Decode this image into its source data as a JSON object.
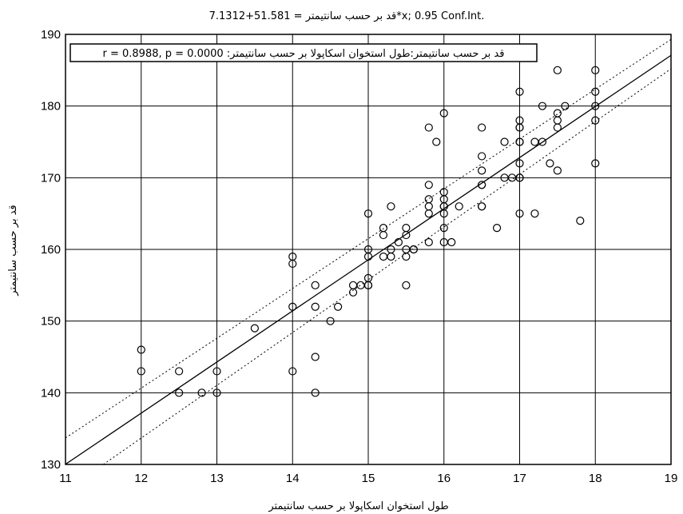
{
  "chart_data": {
    "type": "scatter",
    "title": "قد بر حسب سانتیمتر = 51.581+7.1312*x; 0.95 Conf.Int.",
    "xlabel": "طول استخوان اسکاپولا بر حسب سانتیمتر",
    "ylabel": "قد بر حسب سانتیمتر",
    "legend_text": "قد بر حسب سانتیمتر:طول استخوان اسکاپولا بر حسب سانتیمتر:   r = 0.8988, p = 0.0000",
    "legend_position": "top-left",
    "grid": true,
    "xlim": [
      11,
      19
    ],
    "ylim": [
      130,
      190
    ],
    "x_ticks": [
      11,
      12,
      13,
      14,
      15,
      16,
      17,
      18,
      19
    ],
    "y_ticks": [
      130,
      140,
      150,
      160,
      170,
      180,
      190
    ],
    "regression": {
      "intercept": 51.581,
      "slope": 7.1312,
      "conf_int": 0.95
    },
    "conf_band": {
      "upper": [
        [
          11,
          133.7
        ],
        [
          19,
          189.3
        ]
      ],
      "lower": [
        [
          11.5,
          130
        ],
        [
          19,
          185.2
        ]
      ]
    },
    "points": [
      [
        12,
        146
      ],
      [
        12,
        143
      ],
      [
        12.5,
        143
      ],
      [
        12.5,
        140
      ],
      [
        12.8,
        140
      ],
      [
        13,
        143
      ],
      [
        13,
        140
      ],
      [
        13.5,
        149
      ],
      [
        14,
        159
      ],
      [
        14,
        158
      ],
      [
        14,
        152
      ],
      [
        14,
        143
      ],
      [
        14.3,
        155
      ],
      [
        14.3,
        152
      ],
      [
        14.3,
        145
      ],
      [
        14.3,
        140
      ],
      [
        14.5,
        150
      ],
      [
        14.6,
        152
      ],
      [
        14.8,
        155
      ],
      [
        14.8,
        154
      ],
      [
        14.9,
        155
      ],
      [
        15,
        165
      ],
      [
        15,
        160
      ],
      [
        15,
        159
      ],
      [
        15,
        156
      ],
      [
        15,
        155
      ],
      [
        15,
        155
      ],
      [
        15.2,
        163
      ],
      [
        15.2,
        162
      ],
      [
        15.2,
        159
      ],
      [
        15.3,
        166
      ],
      [
        15.3,
        160
      ],
      [
        15.3,
        159
      ],
      [
        15.4,
        161
      ],
      [
        15.5,
        163
      ],
      [
        15.5,
        162
      ],
      [
        15.5,
        160
      ],
      [
        15.5,
        159
      ],
      [
        15.5,
        155
      ],
      [
        15.6,
        160
      ],
      [
        15.6,
        160
      ],
      [
        15.8,
        177
      ],
      [
        15.8,
        169
      ],
      [
        15.8,
        167
      ],
      [
        15.8,
        166
      ],
      [
        15.8,
        165
      ],
      [
        15.8,
        161
      ],
      [
        15.9,
        175
      ],
      [
        16,
        179
      ],
      [
        16,
        168
      ],
      [
        16,
        167
      ],
      [
        16,
        166
      ],
      [
        16,
        166
      ],
      [
        16,
        165
      ],
      [
        16,
        163
      ],
      [
        16,
        161
      ],
      [
        16.1,
        161
      ],
      [
        16.2,
        166
      ],
      [
        16.5,
        177
      ],
      [
        16.5,
        173
      ],
      [
        16.5,
        171
      ],
      [
        16.5,
        169
      ],
      [
        16.5,
        169
      ],
      [
        16.5,
        166
      ],
      [
        16.5,
        166
      ],
      [
        16.7,
        163
      ],
      [
        16.8,
        175
      ],
      [
        16.8,
        170
      ],
      [
        16.9,
        170
      ],
      [
        17,
        182
      ],
      [
        17,
        178
      ],
      [
        17,
        177
      ],
      [
        17,
        177
      ],
      [
        17,
        175
      ],
      [
        17,
        175
      ],
      [
        17,
        172
      ],
      [
        17,
        170
      ],
      [
        17,
        170
      ],
      [
        17,
        165
      ],
      [
        17.2,
        175
      ],
      [
        17.2,
        165
      ],
      [
        17.3,
        180
      ],
      [
        17.3,
        175
      ],
      [
        17.4,
        172
      ],
      [
        17.5,
        185
      ],
      [
        17.5,
        179
      ],
      [
        17.5,
        178
      ],
      [
        17.5,
        177
      ],
      [
        17.5,
        171
      ],
      [
        17.6,
        180
      ],
      [
        17.8,
        164
      ],
      [
        18,
        185
      ],
      [
        18,
        182
      ],
      [
        18,
        180
      ],
      [
        18,
        178
      ],
      [
        18,
        172
      ]
    ]
  }
}
